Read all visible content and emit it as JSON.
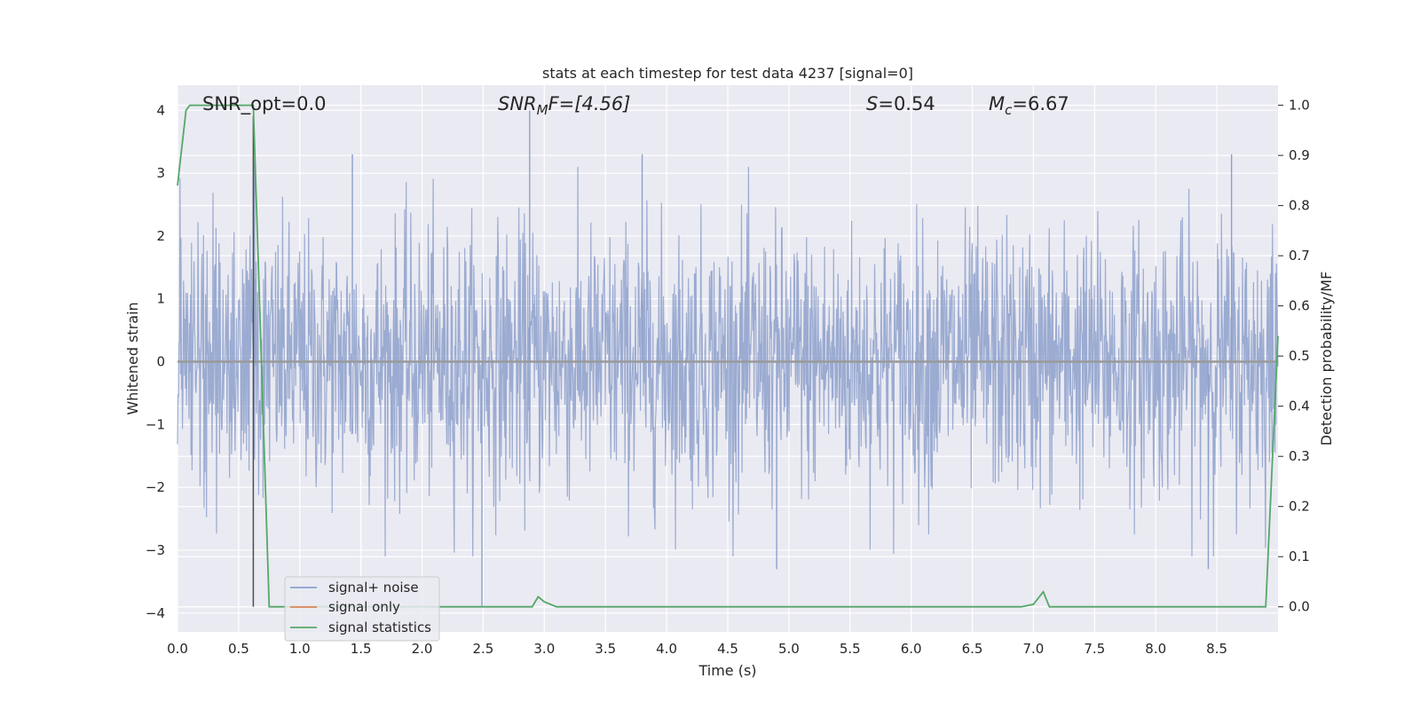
{
  "chart_data": {
    "type": "line",
    "title": "stats at each timestep for test data 4237 [signal=0]",
    "xlabel": "Time (s)",
    "ylabel_left": "Whitened strain",
    "ylabel_right": "Detection probability/MF",
    "xlim": [
      0.0,
      9.0
    ],
    "ylim_left": [
      -4.3,
      4.4
    ],
    "ylim_right": [
      -0.05,
      1.04
    ],
    "x_ticks": [
      "0.0",
      "0.5",
      "1.0",
      "1.5",
      "2.0",
      "2.5",
      "3.0",
      "3.5",
      "4.0",
      "4.5",
      "5.0",
      "5.5",
      "6.0",
      "6.5",
      "7.0",
      "7.5",
      "8.0",
      "8.5"
    ],
    "y_ticks_left": [
      "4",
      "3",
      "2",
      "1",
      "0",
      "−1",
      "−2",
      "−3",
      "−4"
    ],
    "y_ticks_right": [
      "1.0",
      "0.9",
      "0.8",
      "0.7",
      "0.6",
      "0.5",
      "0.4",
      "0.3",
      "0.2",
      "0.1",
      "0.0"
    ],
    "grid": true,
    "legend_position": "lower-left",
    "annotations": {
      "snr_opt": "SNR_opt=0.0",
      "snr_mf_base": "SNR",
      "snr_mf_sub": "M",
      "snr_mf_rest": "F=[4.56]",
      "s_stat_var": "S",
      "s_stat_rest": "=0.54",
      "mc_var": "M",
      "mc_sub": "c",
      "mc_rest": "=6.67"
    },
    "series": [
      {
        "name": "signal+ noise",
        "color": "#8da0cb",
        "axis": "left",
        "description_values": "white Gaussian noise, roughly within [-3.9, 4.0]",
        "peaks": [
          {
            "x": 2.88,
            "y": 4.0
          },
          {
            "x": 3.8,
            "y": 3.3
          },
          {
            "x": 1.43,
            "y": 3.3
          },
          {
            "x": 0.63,
            "y": 3.2
          },
          {
            "x": 8.62,
            "y": 3.3
          },
          {
            "x": 2.49,
            "y": -3.9
          },
          {
            "x": 8.43,
            "y": -3.3
          },
          {
            "x": 4.9,
            "y": -3.3
          }
        ]
      },
      {
        "name": "signal only",
        "color": "#dd8452",
        "axis": "left",
        "x": [
          0.0,
          9.0
        ],
        "y": [
          0.0,
          0.0
        ]
      },
      {
        "name": "signal statistics",
        "color": "#55a868",
        "axis": "right",
        "x": [
          0.0,
          0.07,
          0.1,
          0.15,
          0.25,
          0.35,
          0.45,
          0.55,
          0.62,
          0.75,
          0.85,
          1.0,
          2.0,
          2.9,
          2.95,
          3.0,
          3.1,
          3.5,
          4.0,
          5.0,
          6.0,
          6.9,
          7.0,
          7.08,
          7.13,
          7.5,
          8.0,
          8.5,
          8.9,
          9.0
        ],
        "y": [
          0.84,
          0.99,
          1.0,
          1.0,
          1.0,
          1.0,
          1.0,
          1.0,
          1.0,
          0.0,
          0.0,
          0.0,
          0.0,
          0.0,
          0.02,
          0.01,
          0.0,
          0.0,
          0.0,
          0.0,
          0.0,
          0.0,
          0.005,
          0.03,
          0.0,
          0.0,
          0.0,
          0.0,
          0.0,
          0.54
        ]
      }
    ],
    "vertical_marker_x": 0.62
  },
  "colors": {
    "plot_background": "#eaeaf2",
    "grid": "#ffffff",
    "noise": "#8da0cb",
    "signal_only": "#dd8452",
    "stats": "#55a868",
    "marker_line": "#4d4d4d"
  }
}
